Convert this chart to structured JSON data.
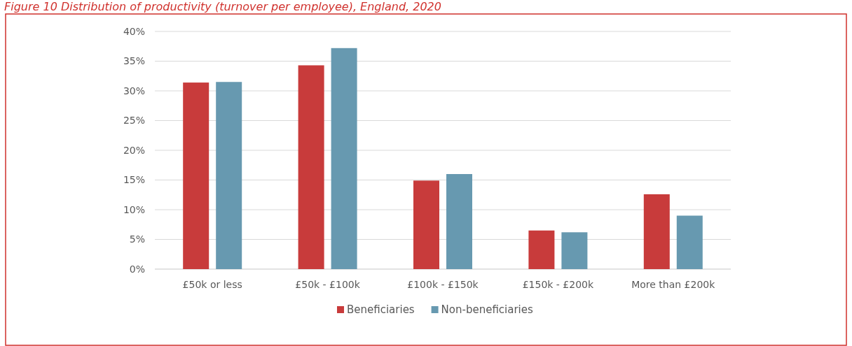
{
  "chart_data": {
    "type": "bar",
    "title": "Figure 10 Distribution of productivity (turnover per employee), England, 2020",
    "categories": [
      "£50k or less",
      "£50k - £100k",
      "£100k - £150k",
      "£150k - £200k",
      "More than £200k"
    ],
    "series": [
      {
        "name": "Beneficiaries",
        "color": "#c83b3b",
        "values": [
          31.4,
          34.3,
          14.9,
          6.5,
          12.6
        ]
      },
      {
        "name": "Non-beneficiaries",
        "color": "#6799b0",
        "values": [
          31.5,
          37.2,
          16.0,
          6.2,
          9.0
        ]
      }
    ],
    "ylim": [
      0,
      40
    ],
    "yticks": [
      {
        "value": 0,
        "label": "0%"
      },
      {
        "value": 5,
        "label": "5%"
      },
      {
        "value": 10,
        "label": "10%"
      },
      {
        "value": 15,
        "label": "15%"
      },
      {
        "value": 20,
        "label": "20%"
      },
      {
        "value": 25,
        "label": "25%"
      },
      {
        "value": 30,
        "label": "30%"
      },
      {
        "value": 35,
        "label": "35%"
      },
      {
        "value": 40,
        "label": "40%"
      }
    ],
    "grid": "y",
    "legend": "bottom"
  }
}
